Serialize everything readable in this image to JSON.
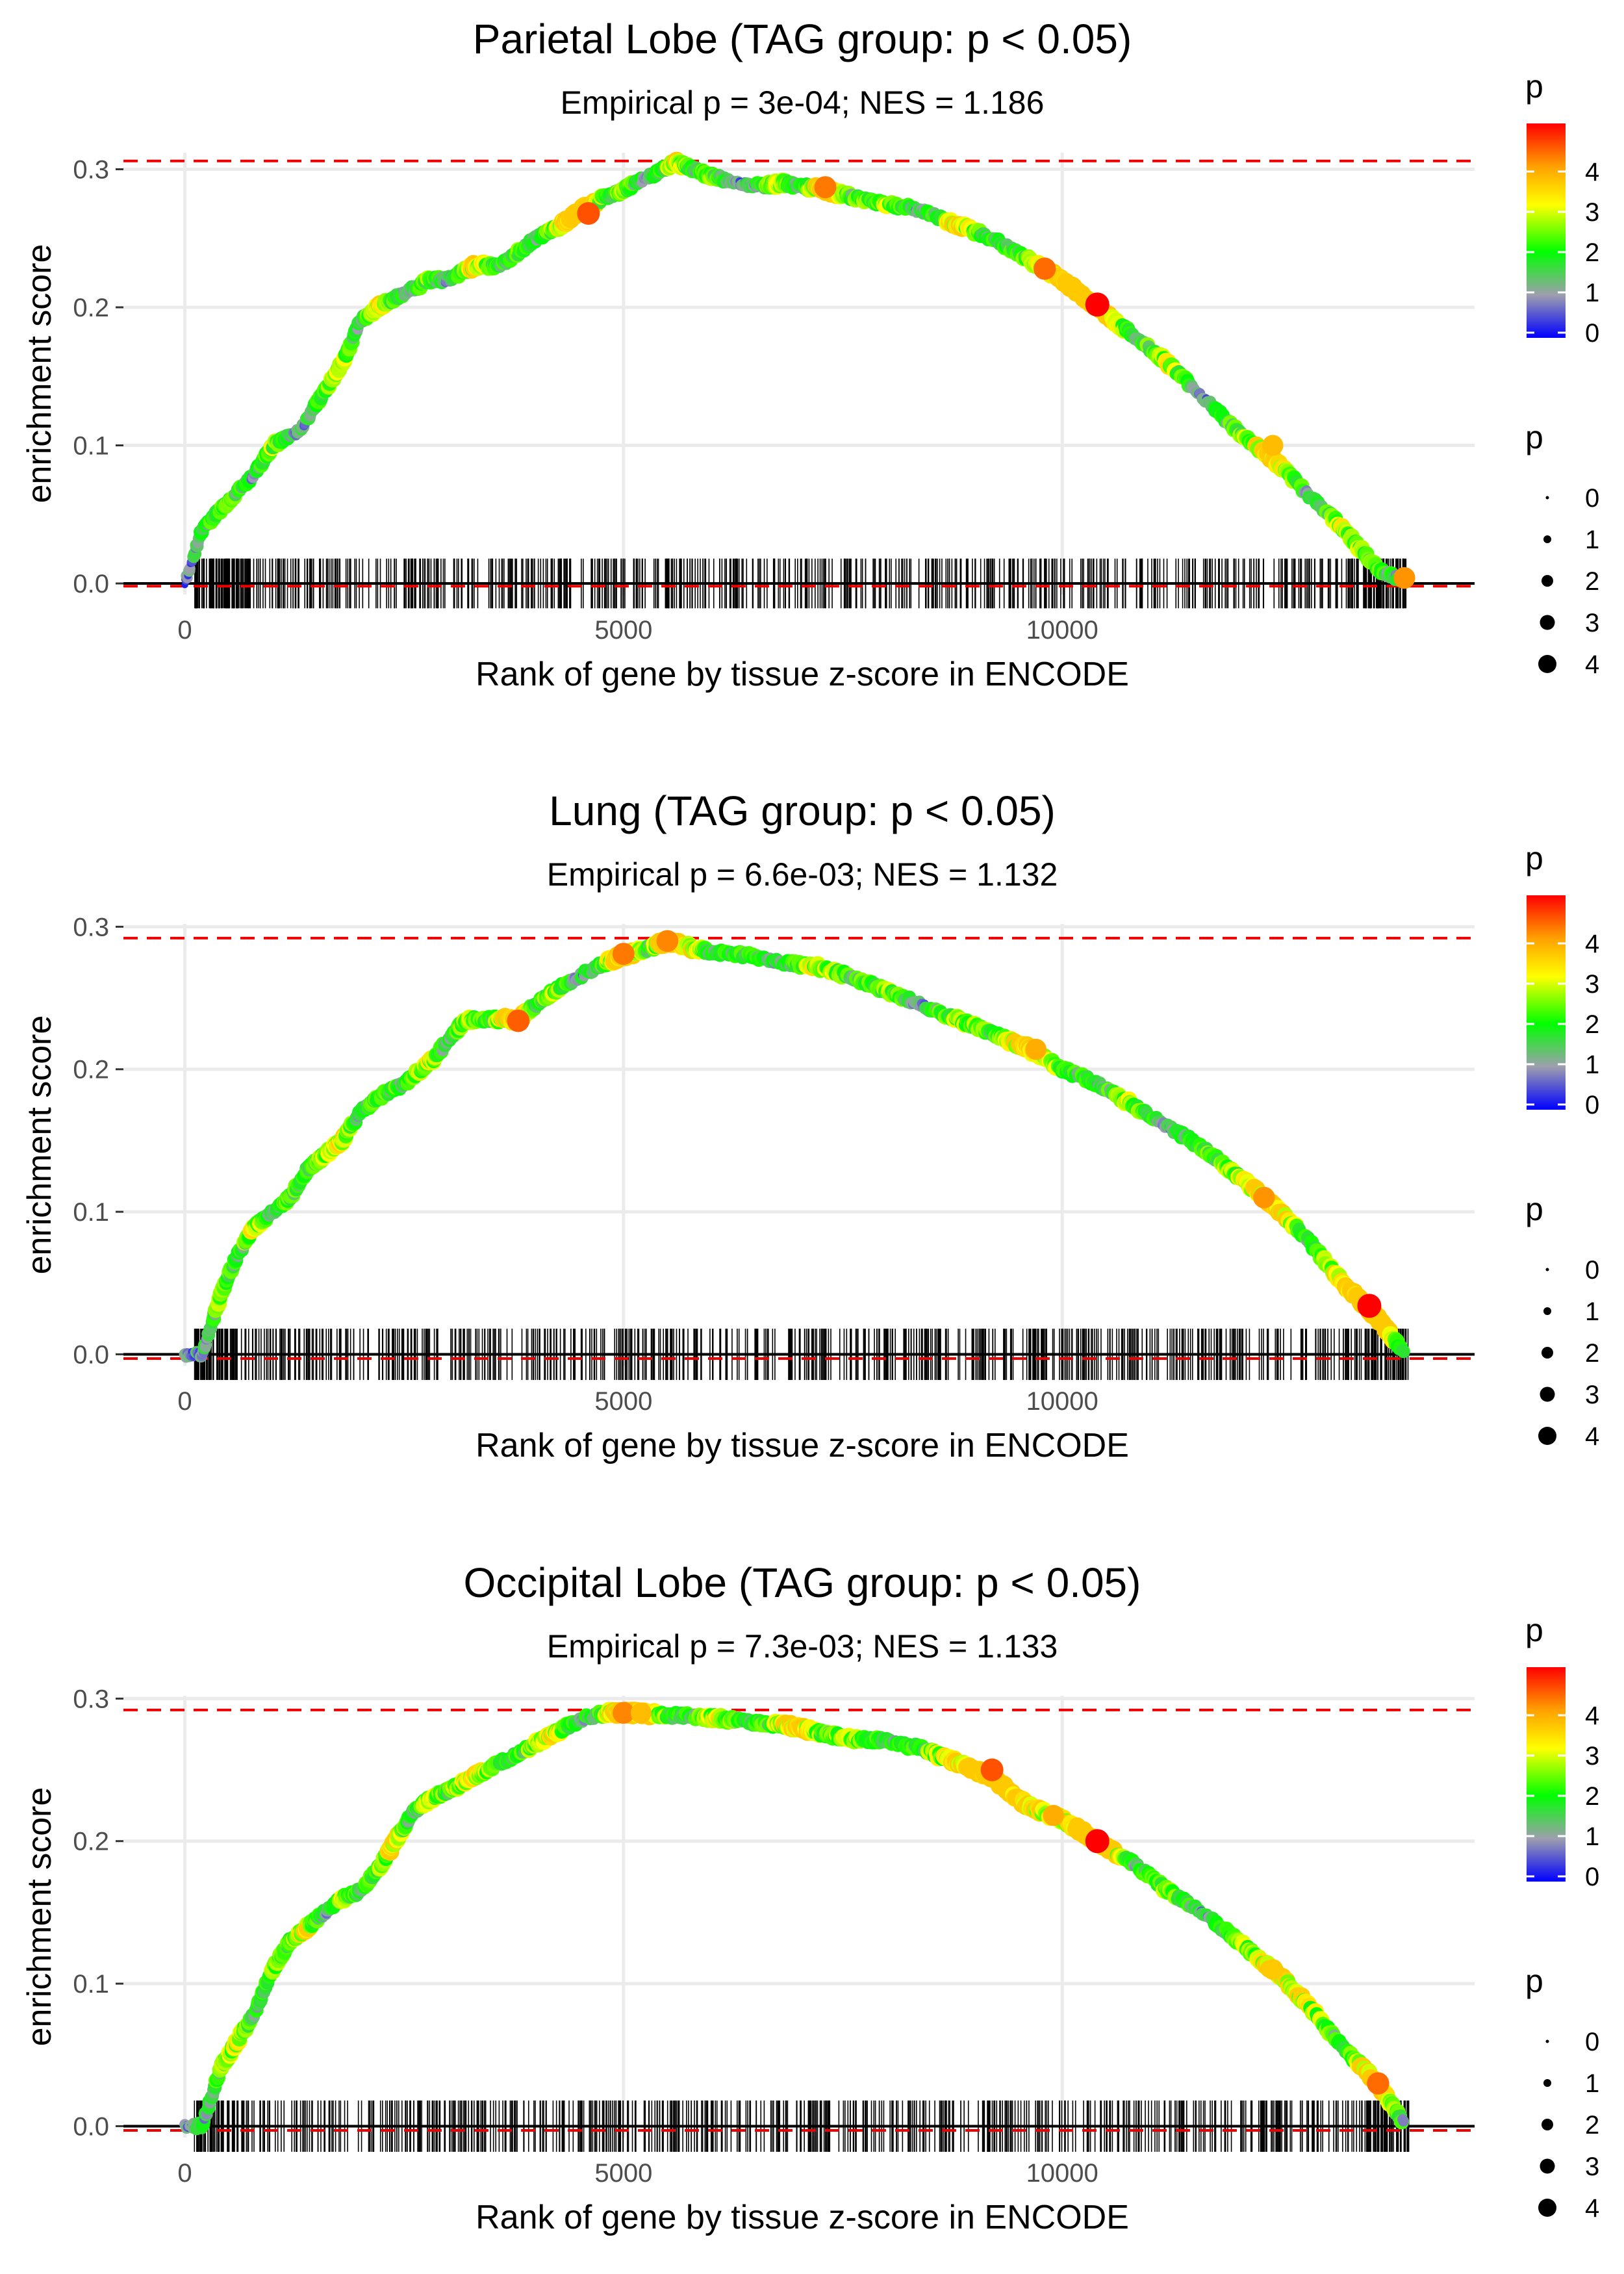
{
  "chart_data": [
    {
      "type": "line",
      "title": "Parietal Lobe (TAG group: p < 0.05)",
      "subtitle": "Empirical p = 3e-04; NES = 1.186",
      "xlabel": "Rank of gene by tissue z-score in ENCODE",
      "ylabel": "enrichment score",
      "xlim": [
        -700,
        14700
      ],
      "ylim": [
        -0.008,
        0.312
      ],
      "x_ticks": [
        0,
        5000,
        10000
      ],
      "x_tick_labels": [
        "0",
        "5000",
        "10000"
      ],
      "y_ticks": [
        0.0,
        0.1,
        0.2,
        0.3
      ],
      "y_tick_labels": [
        "0.0",
        "0.1",
        "0.2",
        "0.3"
      ],
      "max_es_line": 0.306,
      "min_es_line": -0.002,
      "running_es": {
        "x": [
          0,
          200,
          500,
          800,
          1000,
          1300,
          1500,
          1800,
          2000,
          2200,
          2500,
          2800,
          3000,
          3300,
          3600,
          3800,
          4000,
          4300,
          4500,
          4800,
          5000,
          5300,
          5600,
          5800,
          6000,
          6300,
          6600,
          6800,
          7000,
          7300,
          7600,
          8000,
          8400,
          8800,
          9200,
          9600,
          10000,
          10400,
          10800,
          11200,
          11600,
          12000,
          12400,
          12800,
          13200,
          13600,
          13900
        ],
        "y": [
          0.0,
          0.04,
          0.06,
          0.08,
          0.1,
          0.11,
          0.13,
          0.16,
          0.19,
          0.2,
          0.21,
          0.22,
          0.22,
          0.23,
          0.23,
          0.24,
          0.25,
          0.26,
          0.27,
          0.28,
          0.285,
          0.295,
          0.305,
          0.3,
          0.295,
          0.29,
          0.288,
          0.29,
          0.288,
          0.285,
          0.28,
          0.275,
          0.27,
          0.26,
          0.25,
          0.235,
          0.22,
          0.2,
          0.18,
          0.16,
          0.135,
          0.11,
          0.09,
          0.065,
          0.04,
          0.01,
          0.002
        ],
        "p": [
          0.5,
          1.5,
          2.1,
          1.2,
          2.4,
          0.8,
          1.9,
          2.6,
          1.1,
          3.0,
          1.4,
          2.2,
          0.9,
          3.1,
          1.6,
          2.0,
          1.3,
          2.8,
          4.3,
          1.7,
          2.3,
          1.0,
          2.9,
          1.5,
          2.1,
          0.7,
          1.8,
          2.5,
          1.2,
          4.1,
          1.9,
          2.4,
          1.1,
          3.0,
          1.6,
          2.2,
          3.8,
          4.8,
          1.4,
          2.7,
          1.0,
          2.0,
          3.5,
          1.3,
          2.6,
          1.8,
          1.2
        ]
      },
      "highlight_points": [
        {
          "x": 4600,
          "y": 0.268,
          "p": 4.3
        },
        {
          "x": 7300,
          "y": 0.287,
          "p": 4.0
        },
        {
          "x": 9800,
          "y": 0.228,
          "p": 4.1
        },
        {
          "x": 10400,
          "y": 0.202,
          "p": 4.9
        },
        {
          "x": 12400,
          "y": 0.1,
          "p": 3.5
        },
        {
          "x": 13900,
          "y": 0.004,
          "p": 3.8
        }
      ],
      "gene_ticks": {
        "start": 100,
        "end": 13950,
        "count": 620
      }
    },
    {
      "type": "line",
      "title": "Lung (TAG group: p < 0.05)",
      "subtitle": "Empirical p = 6.6e-03; NES = 1.132",
      "xlabel": "Rank of gene by tissue z-score in ENCODE",
      "ylabel": "enrichment score",
      "xlim": [
        -700,
        14700
      ],
      "ylim": [
        -0.008,
        0.302
      ],
      "x_ticks": [
        0,
        5000,
        10000
      ],
      "x_tick_labels": [
        "0",
        "5000",
        "10000"
      ],
      "y_ticks": [
        0.0,
        0.1,
        0.2,
        0.3
      ],
      "y_tick_labels": [
        "0.0",
        "0.1",
        "0.2",
        "0.3"
      ],
      "max_es_line": 0.292,
      "min_es_line": -0.003,
      "running_es": {
        "x": [
          0,
          200,
          400,
          600,
          800,
          1000,
          1200,
          1400,
          1600,
          1800,
          2000,
          2200,
          2500,
          2800,
          3000,
          3200,
          3500,
          3800,
          4000,
          4200,
          4500,
          4800,
          5000,
          5300,
          5500,
          5800,
          6000,
          6400,
          6800,
          7200,
          7600,
          8000,
          8400,
          8800,
          9200,
          9600,
          10000,
          10400,
          10800,
          11200,
          11600,
          12000,
          12400,
          12800,
          13200,
          13600,
          13900
        ],
        "y": [
          0.0,
          0.0,
          0.04,
          0.07,
          0.09,
          0.1,
          0.11,
          0.13,
          0.14,
          0.15,
          0.17,
          0.18,
          0.19,
          0.205,
          0.22,
          0.235,
          0.235,
          0.235,
          0.245,
          0.255,
          0.265,
          0.275,
          0.28,
          0.285,
          0.29,
          0.285,
          0.282,
          0.28,
          0.275,
          0.272,
          0.265,
          0.255,
          0.245,
          0.235,
          0.225,
          0.215,
          0.2,
          0.19,
          0.175,
          0.16,
          0.145,
          0.125,
          0.105,
          0.08,
          0.05,
          0.025,
          0.001
        ],
        "p": [
          0.5,
          1.0,
          2.2,
          1.5,
          2.8,
          1.1,
          2.0,
          1.6,
          2.4,
          3.0,
          1.3,
          2.1,
          1.7,
          2.6,
          1.2,
          2.3,
          1.8,
          4.2,
          1.4,
          2.5,
          1.0,
          2.2,
          4.0,
          1.6,
          4.3,
          2.8,
          1.5,
          2.0,
          1.2,
          2.9,
          1.7,
          2.3,
          1.1,
          2.5,
          1.9,
          3.6,
          2.1,
          1.4,
          2.6,
          1.0,
          1.8,
          2.4,
          3.8,
          1.5,
          3.2,
          4.9,
          1.2
        ]
      },
      "highlight_points": [
        {
          "x": 3800,
          "y": 0.234,
          "p": 4.2
        },
        {
          "x": 5000,
          "y": 0.281,
          "p": 4.0
        },
        {
          "x": 5500,
          "y": 0.29,
          "p": 3.9
        },
        {
          "x": 9700,
          "y": 0.214,
          "p": 3.6
        },
        {
          "x": 12300,
          "y": 0.11,
          "p": 3.8
        },
        {
          "x": 13500,
          "y": 0.034,
          "p": 4.9
        }
      ],
      "gene_ticks": {
        "start": 100,
        "end": 13950,
        "count": 620
      }
    },
    {
      "type": "line",
      "title": "Occipital Lobe (TAG group: p < 0.05)",
      "subtitle": "Empirical p = 7.3e-03; NES = 1.133",
      "xlabel": "Rank of gene by tissue z-score in ENCODE",
      "ylabel": "enrichment score",
      "xlim": [
        -700,
        14700
      ],
      "ylim": [
        -0.008,
        0.302
      ],
      "x_ticks": [
        0,
        5000,
        10000
      ],
      "x_tick_labels": [
        "0",
        "5000",
        "10000"
      ],
      "y_ticks": [
        0.0,
        0.1,
        0.2,
        0.3
      ],
      "y_tick_labels": [
        "0.0",
        "0.1",
        "0.2",
        "0.3"
      ],
      "max_es_line": 0.292,
      "min_es_line": -0.003,
      "running_es": {
        "x": [
          0,
          200,
          400,
          600,
          800,
          1000,
          1200,
          1400,
          1600,
          1800,
          2000,
          2200,
          2400,
          2600,
          2800,
          3000,
          3300,
          3600,
          3900,
          4200,
          4500,
          4800,
          5000,
          5200,
          5500,
          5800,
          6100,
          6400,
          6700,
          7000,
          7300,
          7600,
          8000,
          8400,
          8800,
          9200,
          9600,
          10000,
          10400,
          10800,
          11200,
          11600,
          12000,
          12400,
          12800,
          13200,
          13600,
          13900
        ],
        "y": [
          0.0,
          0.0,
          0.04,
          0.06,
          0.08,
          0.11,
          0.13,
          0.14,
          0.15,
          0.16,
          0.165,
          0.18,
          0.2,
          0.22,
          0.23,
          0.235,
          0.245,
          0.255,
          0.265,
          0.275,
          0.285,
          0.29,
          0.29,
          0.29,
          0.288,
          0.288,
          0.286,
          0.284,
          0.282,
          0.28,
          0.275,
          0.272,
          0.27,
          0.265,
          0.255,
          0.245,
          0.225,
          0.215,
          0.2,
          0.185,
          0.165,
          0.15,
          0.13,
          0.11,
          0.085,
          0.055,
          0.03,
          0.001
        ],
        "p": [
          0.5,
          1.2,
          2.0,
          2.7,
          1.4,
          2.3,
          1.8,
          3.1,
          1.1,
          2.5,
          1.6,
          2.2,
          3.0,
          1.3,
          2.6,
          1.9,
          3.2,
          1.5,
          2.1,
          2.8,
          1.2,
          2.4,
          3.9,
          3.5,
          2.0,
          1.7,
          2.9,
          1.3,
          2.2,
          3.6,
          1.8,
          2.5,
          1.4,
          2.0,
          3.0,
          4.3,
          3.2,
          2.6,
          4.9,
          1.5,
          2.3,
          1.1,
          2.0,
          3.4,
          2.7,
          1.6,
          4.1,
          1.3
        ]
      },
      "highlight_points": [
        {
          "x": 5000,
          "y": 0.29,
          "p": 3.9
        },
        {
          "x": 5200,
          "y": 0.29,
          "p": 3.5
        },
        {
          "x": 9200,
          "y": 0.25,
          "p": 4.3
        },
        {
          "x": 9900,
          "y": 0.218,
          "p": 3.6
        },
        {
          "x": 10400,
          "y": 0.2,
          "p": 4.9
        },
        {
          "x": 12400,
          "y": 0.11,
          "p": 3.4
        },
        {
          "x": 13600,
          "y": 0.03,
          "p": 4.1
        }
      ],
      "gene_ticks": {
        "start": 100,
        "end": 13950,
        "count": 620
      }
    }
  ],
  "legend": {
    "color_title": "p",
    "color_ticks": [
      "0",
      "1",
      "2",
      "3",
      "4"
    ],
    "size_title": "p",
    "size_labels": [
      "0",
      "1",
      "2",
      "3",
      "4"
    ],
    "colors": [
      "#0000FF",
      "#9E9EAE",
      "#00FF00",
      "#FFFF00",
      "#FF0000"
    ]
  }
}
